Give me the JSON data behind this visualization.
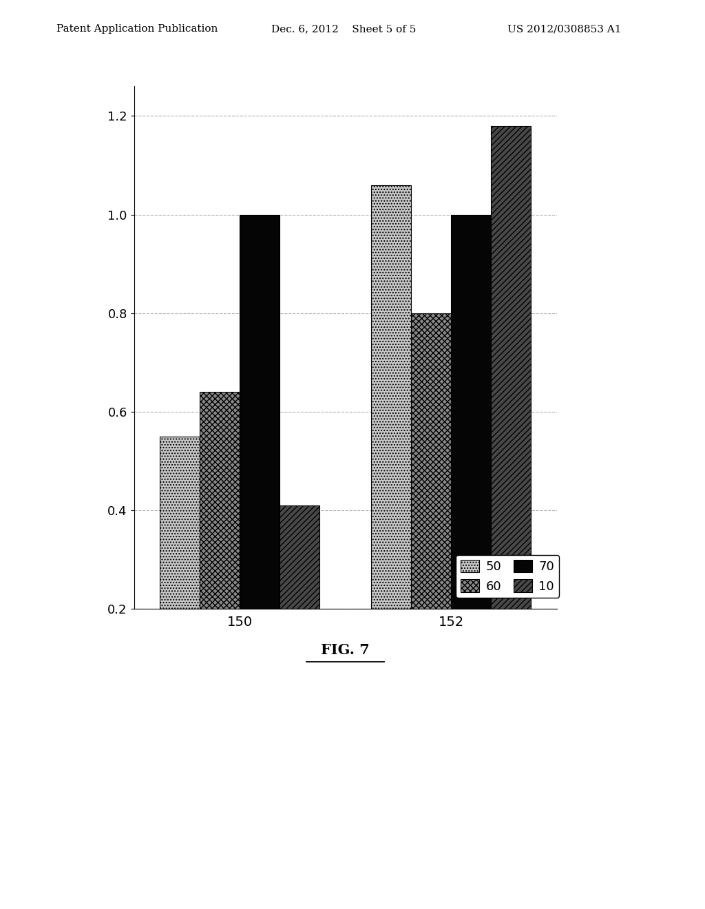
{
  "groups": [
    "150",
    "152"
  ],
  "series_labels": [
    "50",
    "60",
    "70",
    "10"
  ],
  "values": [
    [
      0.55,
      1.06
    ],
    [
      0.64,
      0.8
    ],
    [
      1.0,
      1.0
    ],
    [
      0.41,
      1.18
    ]
  ],
  "ylim": [
    0.2,
    1.26
  ],
  "yticks": [
    0.2,
    0.4,
    0.6,
    0.8,
    1.0,
    1.2
  ],
  "bar_width": 0.17,
  "group_centers": [
    0.0,
    0.9
  ],
  "hatch_patterns": [
    "....",
    "xxxx",
    "",
    "////"
  ],
  "face_colors": [
    "#c8c8c8",
    "#888888",
    "#050505",
    "#484848"
  ],
  "header_line1": "Patent Application Publication",
  "header_date": "Dec. 6, 2012    Sheet 5 of 5",
  "header_patent": "US 2012/0308853 A1",
  "caption": "FIG. 7",
  "background_color": "#ffffff"
}
